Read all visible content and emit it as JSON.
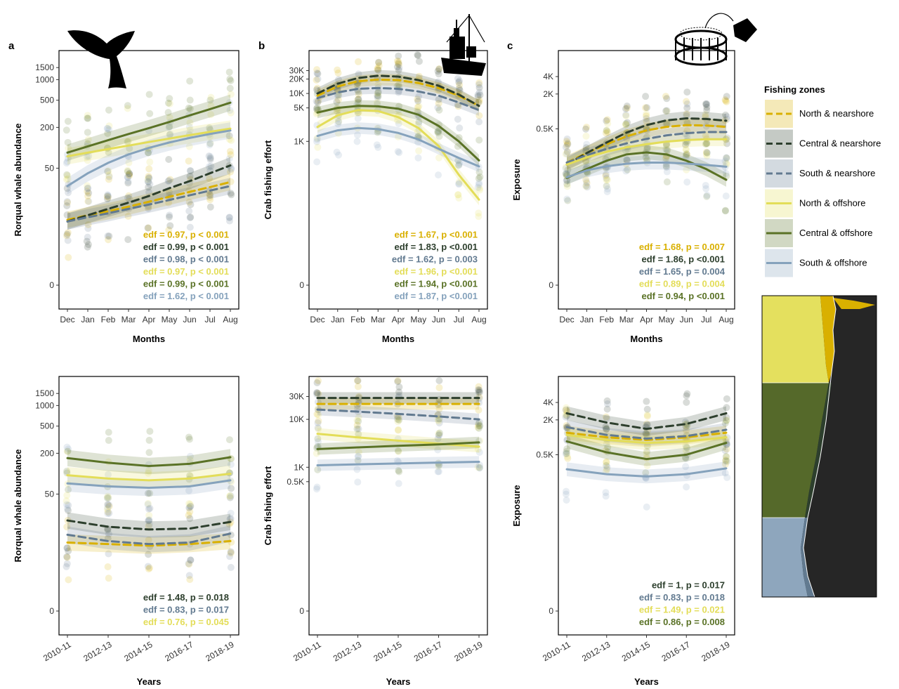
{
  "legend": {
    "title": "Fishing zones",
    "entries": [
      {
        "name": "North & nearshore",
        "color": "#d9b000",
        "dash": true
      },
      {
        "name": "Central & nearshore",
        "color": "#2d3f2d",
        "dash": true
      },
      {
        "name": "South & nearshore",
        "color": "#627a90",
        "dash": true
      },
      {
        "name": "North & offshore",
        "color": "#e3dd58",
        "dash": false
      },
      {
        "name": "Central & offshore",
        "color": "#5a7226",
        "dash": false
      },
      {
        "name": "South & offshore",
        "color": "#85a2bc",
        "dash": false
      }
    ]
  },
  "panel_labels": [
    "a",
    "b",
    "c"
  ],
  "chart_data": [
    {
      "id": "a-top",
      "type": "line",
      "panel": "a",
      "xlabel": "Months",
      "ylabel": "Rorqual whale abundance",
      "categories": [
        "Dec",
        "Jan",
        "Feb",
        "Mar",
        "Apr",
        "May",
        "Jun",
        "Jul",
        "Aug"
      ],
      "yscale": "pseudo-log",
      "ylim": [
        0,
        2200
      ],
      "yticks": [
        {
          "v": 0,
          "label": "0"
        },
        {
          "v": 50,
          "label": "50"
        },
        {
          "v": 200,
          "label": "200"
        },
        {
          "v": 500,
          "label": "500"
        },
        {
          "v": 1000,
          "label": "1000"
        },
        {
          "v": 1500,
          "label": "1500"
        }
      ],
      "series": [
        {
          "values": [
            8,
            9.5,
            11,
            13,
            15.5,
            18.5,
            22,
            26,
            31
          ]
        },
        {
          "values": [
            7.5,
            9.5,
            12,
            15,
            19,
            25,
            32,
            42,
            55
          ]
        },
        {
          "values": [
            7.5,
            8.8,
            10.2,
            12,
            14,
            16.5,
            19.5,
            23,
            27
          ]
        },
        {
          "values": [
            75,
            85,
            96,
            108,
            122,
            137,
            154,
            172,
            192
          ]
        },
        {
          "values": [
            85,
            105,
            130,
            160,
            195,
            240,
            300,
            370,
            460
          ]
        },
        {
          "values": [
            27,
            42,
            60,
            80,
            100,
            120,
            140,
            160,
            180
          ]
        }
      ],
      "annotations": [
        "edf = 0.97, p < 0.001",
        "edf = 0.99, p < 0.001",
        "edf = 0.98, p < 0.001",
        "edf = 0.97, p < 0.001",
        "edf = 0.99, p < 0.001",
        "edf = 1.62, p < 0.001"
      ]
    },
    {
      "id": "b-top",
      "type": "line",
      "panel": "b",
      "xlabel": "Months",
      "ylabel": "Crab fishing effort",
      "categories": [
        "Dec",
        "Jan",
        "Feb",
        "Mar",
        "Apr",
        "May",
        "Jun",
        "Jul",
        "Aug"
      ],
      "yscale": "pseudo-log",
      "ylim": [
        0,
        60000
      ],
      "yticks": [
        {
          "v": 0,
          "label": "0"
        },
        {
          "v": 1000,
          "label": "1K"
        },
        {
          "v": 5000,
          "label": "5K"
        },
        {
          "v": 10000,
          "label": "10K"
        },
        {
          "v": 20000,
          "label": "20K"
        },
        {
          "v": 30000,
          "label": "30K"
        }
      ],
      "series": [
        {
          "values": [
            9000,
            14000,
            18000,
            19500,
            19000,
            16500,
            13000,
            9000,
            5500
          ]
        },
        {
          "values": [
            10000,
            16000,
            21000,
            23500,
            22500,
            19000,
            14500,
            9500,
            5500
          ]
        },
        {
          "values": [
            8000,
            10500,
            12500,
            13000,
            12500,
            11000,
            9000,
            6500,
            4500
          ]
        },
        {
          "values": [
            2000,
            3500,
            4500,
            4300,
            3200,
            1900,
            800,
            200,
            60
          ]
        },
        {
          "values": [
            4000,
            5000,
            5500,
            5400,
            4800,
            3600,
            2100,
            1000,
            400
          ]
        },
        {
          "values": [
            1300,
            1700,
            1900,
            1800,
            1500,
            1100,
            700,
            450,
            300
          ]
        }
      ],
      "annotations": [
        "edf = 1.67, p <0.001",
        "edf = 1.83, p <0.001",
        "edf = 1.62, p = 0.003",
        "edf = 1.96, p <0.001",
        "edf = 1.94, p <0.001",
        "edf = 1.87, p <0.001"
      ]
    },
    {
      "id": "c-top",
      "type": "line",
      "panel": "c",
      "xlabel": "Months",
      "ylabel": "Exposure",
      "categories": [
        "Dec",
        "Jan",
        "Feb",
        "Mar",
        "Apr",
        "May",
        "Jun",
        "Jul",
        "Aug"
      ],
      "yscale": "pseudo-log",
      "ylim": [
        0,
        9000
      ],
      "yticks": [
        {
          "v": 0,
          "label": "0"
        },
        {
          "v": 500,
          "label": "0.5K"
        },
        {
          "v": 2000,
          "label": "2K"
        },
        {
          "v": 4000,
          "label": "4K"
        }
      ],
      "series": [
        {
          "values": [
            130,
            190,
            270,
            370,
            470,
            540,
            580,
            570,
            540
          ]
        },
        {
          "values": [
            120,
            190,
            290,
            430,
            580,
            700,
            760,
            740,
            690
          ]
        },
        {
          "values": [
            130,
            175,
            225,
            280,
            335,
            385,
            420,
            440,
            440
          ]
        },
        {
          "values": [
            120,
            160,
            200,
            240,
            270,
            300,
            320,
            330,
            330
          ]
        },
        {
          "values": [
            70,
            100,
            140,
            180,
            195,
            180,
            140,
            100,
            65
          ]
        },
        {
          "values": [
            72,
            95,
            112,
            124,
            130,
            130,
            125,
            118,
            110
          ]
        }
      ],
      "annotations": [
        "edf = 1.68, p = 0.007",
        "edf = 1.86, p <0.001",
        "edf = 1.65, p = 0.004",
        "edf = 0.89, p = 0.004",
        "edf = 0.94, p <0.001"
      ]
    },
    {
      "id": "a-bottom",
      "type": "line",
      "panel": "a",
      "xlabel": "Years",
      "ylabel": "Rorqual whale abundance",
      "categories": [
        "2010-11",
        "2012-13",
        "2014-15",
        "2016-17",
        "2018-19"
      ],
      "yscale": "pseudo-log",
      "ylim": [
        0,
        2200
      ],
      "yticks": [
        {
          "v": 0,
          "label": "0"
        },
        {
          "v": 50,
          "label": "50"
        },
        {
          "v": 200,
          "label": "200"
        },
        {
          "v": 500,
          "label": "500"
        },
        {
          "v": 1000,
          "label": "1000"
        },
        {
          "v": 1500,
          "label": "1500"
        }
      ],
      "series": [
        {
          "values": [
            9,
            8.5,
            8,
            8.5,
            9.5
          ]
        },
        {
          "values": [
            20,
            16,
            14.5,
            15,
            19
          ]
        },
        {
          "values": [
            12,
            9.5,
            8.5,
            9,
            12.5
          ]
        },
        {
          "values": [
            95,
            85,
            80,
            85,
            100
          ]
        },
        {
          "values": [
            170,
            145,
            130,
            140,
            175
          ]
        },
        {
          "values": [
            72,
            65,
            62,
            65,
            80
          ]
        }
      ],
      "annotations": [
        "edf = 1.48, p = 0.018",
        "edf = 0.83, p = 0.017",
        "edf = 0.76, p = 0.045"
      ]
    },
    {
      "id": "b-bottom",
      "type": "line",
      "panel": "b",
      "xlabel": "Years",
      "ylabel": "Crab fishing effort",
      "categories": [
        "2010-11",
        "2012-13",
        "2014-15",
        "2016-17",
        "2018-19"
      ],
      "yscale": "pseudo-log",
      "ylim": [
        0,
        60000
      ],
      "yticks": [
        {
          "v": 0,
          "label": "0"
        },
        {
          "v": 500,
          "label": "0.5K"
        },
        {
          "v": 1000,
          "label": "1K"
        },
        {
          "v": 10000,
          "label": "10K"
        },
        {
          "v": 30000,
          "label": "30K"
        }
      ],
      "series": [
        {
          "values": [
            21000,
            21000,
            21000,
            21000,
            21000
          ]
        },
        {
          "values": [
            28000,
            28000,
            28000,
            28000,
            28000
          ]
        },
        {
          "values": [
            16000,
            14500,
            13000,
            11500,
            10000
          ]
        },
        {
          "values": [
            5000,
            4200,
            3600,
            3100,
            2700
          ]
        },
        {
          "values": [
            2400,
            2600,
            2800,
            3000,
            3300
          ]
        },
        {
          "values": [
            1100,
            1150,
            1200,
            1250,
            1300
          ]
        }
      ],
      "annotations": []
    },
    {
      "id": "c-bottom",
      "type": "line",
      "panel": "c",
      "xlabel": "Years",
      "ylabel": "Exposure",
      "categories": [
        "2010-11",
        "2012-13",
        "2014-15",
        "2016-17",
        "2018-19"
      ],
      "yscale": "pseudo-log",
      "ylim": [
        0,
        9000
      ],
      "yticks": [
        {
          "v": 0,
          "label": "0"
        },
        {
          "v": 500,
          "label": "0.5K"
        },
        {
          "v": 2000,
          "label": "2K"
        },
        {
          "v": 4000,
          "label": "4K"
        }
      ],
      "series": [
        {
          "values": [
            1200,
            1000,
            900,
            1000,
            1200
          ]
        },
        {
          "values": [
            2600,
            1800,
            1400,
            1700,
            2600
          ]
        },
        {
          "values": [
            1500,
            1100,
            950,
            1050,
            1350
          ]
        },
        {
          "values": [
            1100,
            900,
            800,
            850,
            1000
          ]
        },
        {
          "values": [
            850,
            550,
            420,
            500,
            800
          ]
        },
        {
          "values": [
            280,
            230,
            210,
            230,
            290
          ]
        }
      ],
      "annotations": [
        "edf = 1, p = 0.017",
        "edf = 0.83, p = 0.018",
        "edf = 1.49, p = 0.021",
        "edf = 0.86, p = 0.008"
      ]
    }
  ]
}
